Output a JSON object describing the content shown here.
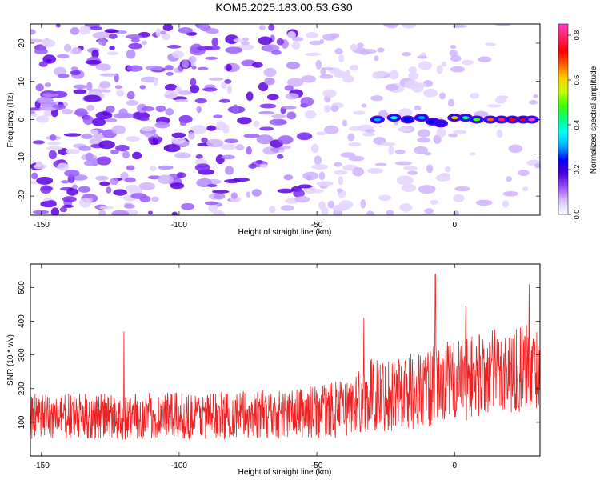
{
  "title": "KOM5.2025.183.00.53.G30",
  "chart_data": [
    {
      "type": "heatmap",
      "xlabel": "Height of straight line (km)",
      "ylabel": "Frequency (Hz)",
      "xlim": [
        -154,
        31
      ],
      "ylim": [
        -25,
        25
      ],
      "xticks": [
        -150,
        -100,
        -50,
        0
      ],
      "yticks": [
        -20,
        -10,
        0,
        10,
        20
      ],
      "colorbar": {
        "label": "Normalized spectral amplitude",
        "ticks": [
          0.0,
          0.2,
          0.4,
          0.6,
          0.8
        ],
        "range": [
          0,
          0.85
        ],
        "colors": [
          "#ffffff",
          "#d8c0ff",
          "#9a50ff",
          "#5000d8",
          "#0000ff",
          "#00aaff",
          "#00ffff",
          "#00ff80",
          "#40ff00",
          "#c0ff00",
          "#ffd000",
          "#ff6000",
          "#ff0000",
          "#ff2060",
          "#ff40c0"
        ]
      },
      "signal_track": [
        {
          "x": -28,
          "y": 0.0,
          "amp": 0.3
        },
        {
          "x": -22,
          "y": 0.5,
          "amp": 0.35
        },
        {
          "x": -17,
          "y": 0.0,
          "amp": 0.25
        },
        {
          "x": -12,
          "y": 0.5,
          "amp": 0.3
        },
        {
          "x": -8,
          "y": -0.5,
          "amp": 0.25
        },
        {
          "x": -5,
          "y": -1.0,
          "amp": 0.2
        },
        {
          "x": 0,
          "y": 0.5,
          "amp": 0.6
        },
        {
          "x": 4,
          "y": 0.5,
          "amp": 0.4
        },
        {
          "x": 8,
          "y": 0.0,
          "amp": 0.5
        },
        {
          "x": 13,
          "y": 0.0,
          "amp": 0.65
        },
        {
          "x": 17,
          "y": 0.0,
          "amp": 0.8
        },
        {
          "x": 21,
          "y": 0.0,
          "amp": 0.7
        },
        {
          "x": 25,
          "y": 0.0,
          "amp": 0.75
        },
        {
          "x": 28,
          "y": 0.0,
          "amp": 0.85
        }
      ]
    },
    {
      "type": "line",
      "xlabel": "Height of straight line (km)",
      "ylabel": "SNR (10 * v/v)",
      "xlim": [
        -154,
        31
      ],
      "ylim": [
        0,
        570
      ],
      "xticks": [
        -150,
        -100,
        -50,
        0
      ],
      "yticks": [
        100,
        200,
        300,
        400,
        500
      ],
      "line_color": "#ee2222",
      "trend": [
        {
          "x": -154,
          "mean": 115,
          "spread": 70
        },
        {
          "x": -100,
          "mean": 118,
          "spread": 70
        },
        {
          "x": -60,
          "mean": 125,
          "spread": 75
        },
        {
          "x": -40,
          "mean": 140,
          "spread": 85
        },
        {
          "x": -30,
          "mean": 180,
          "spread": 110
        },
        {
          "x": -10,
          "mean": 200,
          "spread": 120
        },
        {
          "x": 0,
          "mean": 225,
          "spread": 125
        },
        {
          "x": 15,
          "mean": 250,
          "spread": 130
        },
        {
          "x": 31,
          "mean": 265,
          "spread": 130
        }
      ],
      "peaks": [
        {
          "x": -120,
          "y": 370
        },
        {
          "x": -33,
          "y": 410
        },
        {
          "x": -7,
          "y": 540
        },
        {
          "x": 4,
          "y": 445
        },
        {
          "x": 27,
          "y": 510
        }
      ]
    }
  ]
}
